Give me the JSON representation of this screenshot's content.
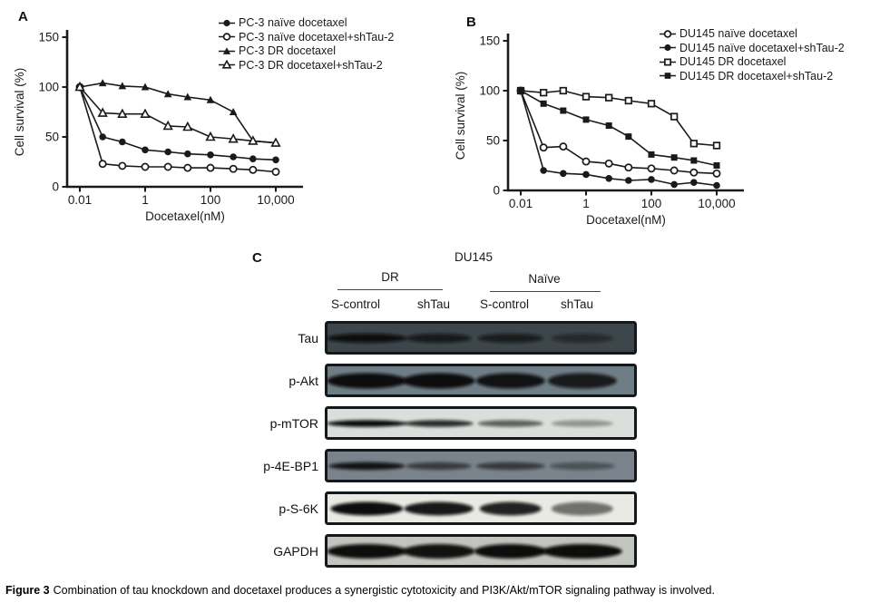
{
  "figure": {
    "caption": {
      "prefix": "Figure 3",
      "text": "Combination of tau knockdown and docetaxel produces a synergistic cytotoxicity and PI3K/Akt/mTOR signaling pathway is involved."
    }
  },
  "panel_labels": {
    "a": "A",
    "b": "B",
    "c": "C"
  },
  "chart_data": [
    {
      "type": "line",
      "panel": "A",
      "cell_line": "PC-3",
      "xlabel": "Docetaxel(nM)",
      "ylabel": "Cell survival (%)",
      "xscale": "log",
      "xlim": [
        0.01,
        10000
      ],
      "ylim": [
        0,
        150
      ],
      "yticks": [
        0,
        50,
        100,
        150
      ],
      "xticks": [
        {
          "value": 0.01,
          "label": "0.01"
        },
        {
          "value": 1,
          "label": "1"
        },
        {
          "value": 100,
          "label": "100"
        },
        {
          "value": 10000,
          "label": "10,000"
        }
      ],
      "x": [
        0.01,
        0.05,
        0.2,
        1,
        5,
        20,
        100,
        500,
        2000,
        10000
      ],
      "grid": false,
      "legend_position": "top-right",
      "series": [
        {
          "name": "PC-3 naïve docetaxel",
          "marker": "circle-filled",
          "values": [
            100,
            50,
            45,
            37,
            35,
            33,
            32,
            30,
            28,
            27
          ]
        },
        {
          "name": "PC-3 naïve docetaxel+shTau-2",
          "marker": "circle-open",
          "values": [
            100,
            23,
            21,
            20,
            20,
            19,
            19,
            18,
            17,
            15
          ]
        },
        {
          "name": "PC-3 DR docetaxel",
          "marker": "triangle-filled",
          "values": [
            100,
            104,
            101,
            100,
            93,
            90,
            87,
            75,
            46,
            44
          ]
        },
        {
          "name": "PC-3 DR docetaxel+shTau-2",
          "marker": "triangle-open",
          "values": [
            100,
            74,
            73,
            73,
            61,
            60,
            50,
            48,
            46,
            44
          ]
        }
      ]
    },
    {
      "type": "line",
      "panel": "B",
      "cell_line": "DU145",
      "xlabel": "Docetaxel(nM)",
      "ylabel": "Cell survival (%)",
      "xscale": "log",
      "xlim": [
        0.01,
        10000
      ],
      "ylim": [
        0,
        150
      ],
      "yticks": [
        0,
        50,
        100,
        150
      ],
      "xticks": [
        {
          "value": 0.01,
          "label": "0.01"
        },
        {
          "value": 1,
          "label": "1"
        },
        {
          "value": 100,
          "label": "100"
        },
        {
          "value": 10000,
          "label": "10,000"
        }
      ],
      "x": [
        0.01,
        0.05,
        0.2,
        1,
        5,
        20,
        100,
        500,
        2000,
        10000
      ],
      "grid": false,
      "legend_position": "top-right",
      "series": [
        {
          "name": "DU145 naïve docetaxel",
          "marker": "circle-open",
          "values": [
            100,
            43,
            44,
            29,
            27,
            23,
            22,
            20,
            18,
            17
          ]
        },
        {
          "name": "DU145 naïve docetaxel+shTau-2",
          "marker": "circle-filled",
          "values": [
            100,
            20,
            17,
            16,
            12,
            10,
            11,
            6,
            8,
            5
          ]
        },
        {
          "name": "DU145 DR docetaxel",
          "marker": "square-open",
          "values": [
            100,
            98,
            100,
            94,
            93,
            90,
            87,
            74,
            47,
            45
          ]
        },
        {
          "name": "DU145 DR docetaxel+shTau-2",
          "marker": "square-filled",
          "values": [
            100,
            87,
            80,
            71,
            65,
            54,
            36,
            33,
            30,
            25
          ]
        }
      ]
    }
  ],
  "western_blot": {
    "title": "DU145",
    "groups": [
      {
        "name": "DR"
      },
      {
        "name": "Naïve"
      }
    ],
    "lanes": [
      "S-control",
      "shTau",
      "S-control",
      "shTau"
    ],
    "lane_fractions": [
      0.135,
      0.365,
      0.595,
      0.825
    ],
    "rows": [
      {
        "label": "Tau",
        "bg": "#3d464a",
        "band_ry": 5,
        "band_rx": [
          44,
          36,
          36,
          34
        ],
        "intensities": [
          1,
          0.78,
          0.72,
          0.5
        ]
      },
      {
        "label": "p-Akt",
        "bg": "#6f7d86",
        "band_ry": 8.5,
        "band_rx": [
          44,
          40,
          38,
          38
        ],
        "intensities": [
          1,
          1,
          0.95,
          0.88
        ]
      },
      {
        "label": "p-mTOR",
        "bg": "#dbdfdb",
        "band_ry": 3.8,
        "band_rx": [
          44,
          38,
          36,
          34
        ],
        "intensities": [
          1,
          0.85,
          0.6,
          0.35
        ]
      },
      {
        "label": "p-4E-BP1",
        "bg": "#7a838c",
        "band_ry": 4.2,
        "band_rx": [
          42,
          36,
          38,
          36
        ],
        "intensities": [
          0.95,
          0.6,
          0.62,
          0.42
        ]
      },
      {
        "label": "p-S-6K",
        "bg": "#eaeae4",
        "band_ry": 7.5,
        "band_rx": [
          40,
          38,
          34,
          34
        ],
        "intensities": [
          1,
          0.95,
          0.9,
          0.55
        ]
      },
      {
        "label": "GAPDH",
        "bg": "#c2c4bf",
        "band_ry": 8,
        "band_rx": [
          44,
          40,
          40,
          44
        ],
        "intensities": [
          1,
          0.97,
          1,
          1
        ]
      }
    ]
  },
  "colors": {
    "ink": "#1a1a1a",
    "band": "#0b0e10",
    "blot_border": "#15181a"
  }
}
